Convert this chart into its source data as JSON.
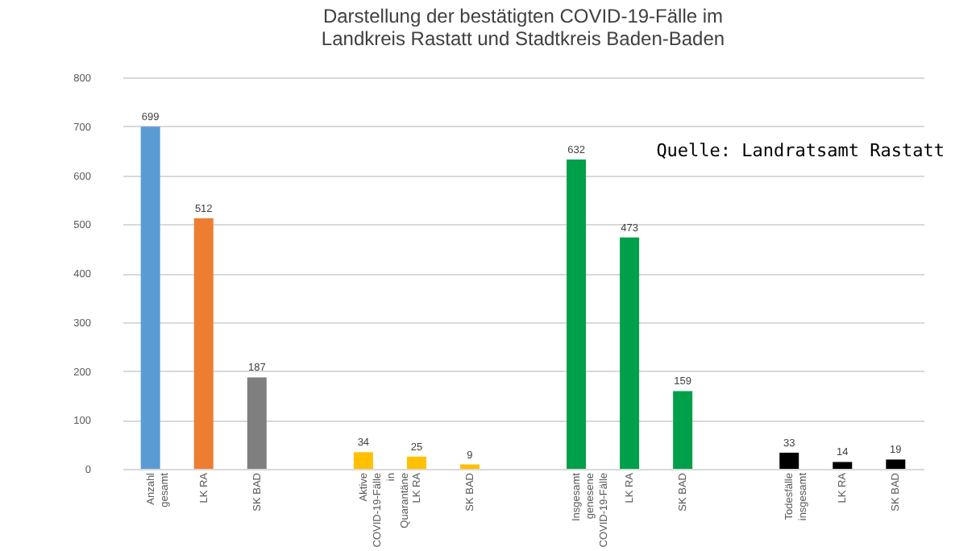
{
  "chart_data": {
    "type": "bar",
    "title": "Darstellung der bestätigten COVID-19-Fälle im Landkreis Rastatt und Stadtkreis Baden-Baden",
    "categories": [
      "Anzahl gesamt",
      "LK RA",
      "SK BAD",
      null,
      "Aktive COVID-19-Fälle in Quarantäne",
      "LK RA",
      "SK BAD",
      null,
      "Insgesamt genesene COVID-19-Fälle",
      "LK RA",
      "SK BAD",
      null,
      "Todesfälle insgesamt",
      "LK RA",
      "SK BAD"
    ],
    "values": [
      699,
      512,
      187,
      null,
      34,
      25,
      9,
      null,
      632,
      473,
      159,
      null,
      33,
      14,
      19
    ],
    "colors": [
      "#5b9bd5",
      "#ed7d31",
      "#7f7f7f",
      null,
      "#ffc000",
      "#ffc000",
      "#ffc000",
      null,
      "#00a04a",
      "#00a04a",
      "#00a04a",
      null,
      "#000000",
      "#000000",
      "#000000"
    ],
    "ylim": [
      0,
      800
    ],
    "yticks": [
      0,
      100,
      200,
      300,
      400,
      500,
      600,
      700,
      800
    ],
    "grid": "y",
    "data_labels": true,
    "annotations": [
      "Quelle: Landratsamt Rastatt"
    ]
  }
}
